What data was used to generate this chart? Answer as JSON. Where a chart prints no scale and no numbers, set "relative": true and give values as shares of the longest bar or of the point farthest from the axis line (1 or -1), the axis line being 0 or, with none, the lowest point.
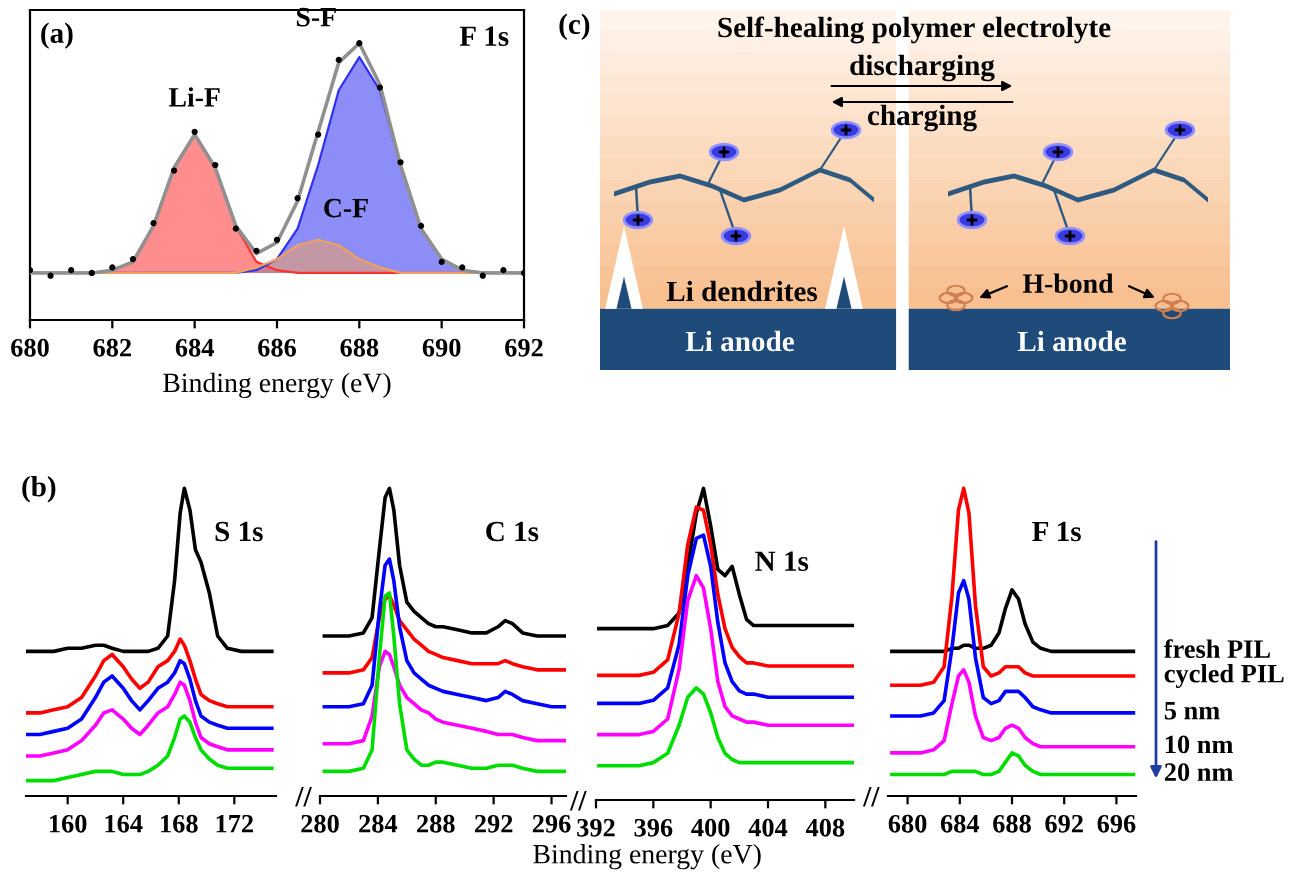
{
  "chart_data": [
    {
      "type": "line",
      "title": "F 1s",
      "xlabel": "Binding energy (eV)",
      "relative": true,
      "xlim": [
        680,
        692
      ],
      "xticks": [
        680,
        682,
        684,
        686,
        688,
        690,
        692
      ],
      "annotations": [
        "(a)",
        {
          "text": "Li-F",
          "x": 684.0,
          "y": 0.67
        },
        {
          "text": "S-F",
          "x": 688.0,
          "y": 1.0
        },
        {
          "text": "C-F",
          "x": 687.0,
          "y": 0.29
        }
      ],
      "x": [
        680,
        680.5,
        681,
        681.5,
        682,
        682.5,
        683,
        683.5,
        684,
        684.5,
        685,
        685.5,
        686,
        686.5,
        687,
        687.5,
        688,
        688.5,
        689,
        689.5,
        690,
        690.5,
        691,
        691.5,
        692
      ],
      "series": [
        {
          "type": "area",
          "color": "#ff3030",
          "values": [
            0.17,
            0.17,
            0.17,
            0.17,
            0.18,
            0.21,
            0.34,
            0.55,
            0.67,
            0.55,
            0.34,
            0.21,
            0.18,
            0.17,
            0.17,
            0.17,
            0.17,
            0.17,
            0.17,
            0.17,
            0.17,
            0.17,
            0.17,
            0.17,
            0.17
          ]
        },
        {
          "type": "area",
          "color": "#3030f0",
          "values": [
            0.17,
            0.17,
            0.17,
            0.17,
            0.17,
            0.17,
            0.17,
            0.17,
            0.17,
            0.17,
            0.17,
            0.18,
            0.22,
            0.33,
            0.56,
            0.83,
            0.95,
            0.83,
            0.56,
            0.33,
            0.22,
            0.18,
            0.17,
            0.17,
            0.17
          ]
        },
        {
          "type": "area",
          "color": "#f0a060",
          "values": [
            0.17,
            0.17,
            0.17,
            0.17,
            0.17,
            0.17,
            0.17,
            0.17,
            0.17,
            0.17,
            0.17,
            0.19,
            0.22,
            0.27,
            0.29,
            0.27,
            0.22,
            0.19,
            0.17,
            0.17,
            0.17,
            0.17,
            0.17,
            0.17,
            0.17
          ]
        },
        {
          "type": "line",
          "color": "#909090",
          "values": [
            0.17,
            0.17,
            0.17,
            0.17,
            0.18,
            0.21,
            0.34,
            0.55,
            0.67,
            0.55,
            0.34,
            0.24,
            0.28,
            0.43,
            0.68,
            0.93,
            1.0,
            0.85,
            0.56,
            0.33,
            0.22,
            0.18,
            0.17,
            0.17,
            0.17
          ]
        },
        {
          "type": "scatter",
          "marker": "circle",
          "color": "#000000",
          "values": [
            0.18,
            0.16,
            0.18,
            0.17,
            0.19,
            0.22,
            0.35,
            0.54,
            0.68,
            0.56,
            0.33,
            0.25,
            0.29,
            0.44,
            0.67,
            0.94,
            1.0,
            0.84,
            0.57,
            0.34,
            0.21,
            0.19,
            0.16,
            0.18,
            0.17
          ]
        }
      ]
    },
    {
      "type": "other",
      "title": "(c)",
      "annotations": [
        "Self-healing polymer electrolyte",
        "discharging",
        "charging",
        "Li dendrites",
        "H-bond",
        "Li anode",
        "Li anode"
      ]
    },
    {
      "type": "line",
      "title": "S 1s",
      "relative": true,
      "xlim": [
        157,
        175
      ],
      "xticks": [
        160,
        164,
        168,
        172
      ],
      "annotations": [
        "(b)"
      ],
      "x": [
        157,
        158,
        159,
        160,
        161,
        162,
        162.6,
        163.2,
        164,
        164.6,
        165.2,
        165.8,
        166.5,
        167.2,
        167.7,
        168.1,
        168.4,
        168.8,
        169.2,
        169.6,
        170.2,
        170.8,
        171.5,
        172.5,
        173.5,
        174.7
      ],
      "series": [
        {
          "color": "#000000",
          "values": [
            0.47,
            0.47,
            0.47,
            0.48,
            0.48,
            0.49,
            0.49,
            0.48,
            0.47,
            0.47,
            0.47,
            0.47,
            0.48,
            0.52,
            0.7,
            0.92,
            1.0,
            0.93,
            0.8,
            0.76,
            0.66,
            0.52,
            0.48,
            0.47,
            0.47,
            0.47
          ]
        },
        {
          "color": "#ff0000",
          "values": [
            0.27,
            0.27,
            0.28,
            0.29,
            0.32,
            0.39,
            0.44,
            0.46,
            0.42,
            0.38,
            0.35,
            0.37,
            0.42,
            0.44,
            0.47,
            0.51,
            0.49,
            0.44,
            0.38,
            0.33,
            0.31,
            0.3,
            0.29,
            0.29,
            0.29,
            0.29
          ]
        },
        {
          "color": "#0000ff",
          "values": [
            0.2,
            0.2,
            0.21,
            0.22,
            0.25,
            0.32,
            0.37,
            0.39,
            0.35,
            0.31,
            0.28,
            0.31,
            0.35,
            0.37,
            0.4,
            0.44,
            0.43,
            0.38,
            0.31,
            0.26,
            0.24,
            0.23,
            0.22,
            0.22,
            0.22,
            0.22
          ]
        },
        {
          "color": "#ff00ff",
          "values": [
            0.13,
            0.13,
            0.14,
            0.15,
            0.18,
            0.23,
            0.27,
            0.28,
            0.25,
            0.22,
            0.2,
            0.23,
            0.27,
            0.29,
            0.33,
            0.37,
            0.36,
            0.31,
            0.24,
            0.19,
            0.17,
            0.16,
            0.15,
            0.15,
            0.15,
            0.15
          ]
        },
        {
          "color": "#00dd00",
          "values": [
            0.05,
            0.05,
            0.05,
            0.06,
            0.07,
            0.08,
            0.08,
            0.08,
            0.07,
            0.07,
            0.07,
            0.08,
            0.1,
            0.13,
            0.19,
            0.25,
            0.26,
            0.24,
            0.19,
            0.15,
            0.12,
            0.1,
            0.09,
            0.09,
            0.09,
            0.09
          ]
        }
      ]
    },
    {
      "type": "line",
      "title": "C 1s",
      "xlabel": "Binding energy (eV)",
      "relative": true,
      "xlim": [
        280,
        297
      ],
      "xticks": [
        280,
        284,
        288,
        292,
        296
      ],
      "annotations": [
        "//"
      ],
      "x": [
        280.3,
        281,
        282,
        283,
        283.6,
        284.1,
        284.5,
        284.8,
        285.1,
        285.5,
        286,
        286.5,
        287,
        287.5,
        288,
        288.5,
        289.5,
        290.5,
        291.5,
        292.3,
        292.8,
        293.3,
        294,
        295,
        296,
        296.9
      ],
      "series": [
        {
          "color": "#000000",
          "values": [
            0.52,
            0.52,
            0.52,
            0.53,
            0.58,
            0.8,
            0.97,
            1.0,
            0.93,
            0.75,
            0.63,
            0.6,
            0.58,
            0.56,
            0.55,
            0.55,
            0.54,
            0.53,
            0.53,
            0.55,
            0.57,
            0.56,
            0.53,
            0.52,
            0.52,
            0.52
          ]
        },
        {
          "color": "#ff0000",
          "values": [
            0.4,
            0.4,
            0.4,
            0.41,
            0.45,
            0.58,
            0.64,
            0.65,
            0.62,
            0.57,
            0.54,
            0.51,
            0.49,
            0.47,
            0.46,
            0.45,
            0.44,
            0.43,
            0.43,
            0.43,
            0.44,
            0.43,
            0.42,
            0.41,
            0.41,
            0.41
          ]
        },
        {
          "color": "#0000ff",
          "values": [
            0.29,
            0.29,
            0.29,
            0.3,
            0.36,
            0.6,
            0.75,
            0.77,
            0.7,
            0.55,
            0.44,
            0.4,
            0.38,
            0.36,
            0.35,
            0.34,
            0.33,
            0.32,
            0.31,
            0.32,
            0.34,
            0.33,
            0.31,
            0.3,
            0.29,
            0.29
          ]
        },
        {
          "color": "#ff00ff",
          "values": [
            0.17,
            0.17,
            0.17,
            0.18,
            0.26,
            0.42,
            0.47,
            0.46,
            0.42,
            0.36,
            0.32,
            0.3,
            0.28,
            0.27,
            0.25,
            0.24,
            0.23,
            0.22,
            0.21,
            0.2,
            0.2,
            0.2,
            0.19,
            0.18,
            0.18,
            0.18
          ]
        },
        {
          "color": "#00dd00",
          "values": [
            0.08,
            0.08,
            0.08,
            0.09,
            0.15,
            0.45,
            0.65,
            0.66,
            0.52,
            0.3,
            0.15,
            0.12,
            0.1,
            0.1,
            0.11,
            0.11,
            0.1,
            0.09,
            0.09,
            0.1,
            0.1,
            0.1,
            0.09,
            0.08,
            0.08,
            0.08
          ]
        }
      ]
    },
    {
      "type": "line",
      "title": "N 1s",
      "relative": true,
      "xlim": [
        392,
        410
      ],
      "xticks": [
        392,
        396,
        400,
        404,
        408
      ],
      "annotations": [
        "//"
      ],
      "x": [
        392.2,
        393,
        394,
        395,
        396,
        397,
        397.8,
        398.4,
        399,
        399.5,
        400,
        400.5,
        401,
        401.5,
        402,
        402.5,
        403,
        404,
        405,
        406,
        407,
        408,
        409,
        409.9
      ],
      "series": [
        {
          "color": "#000000",
          "values": [
            0.55,
            0.55,
            0.55,
            0.55,
            0.55,
            0.56,
            0.6,
            0.75,
            0.92,
            1.0,
            0.88,
            0.74,
            0.72,
            0.75,
            0.66,
            0.58,
            0.56,
            0.56,
            0.56,
            0.56,
            0.56,
            0.56,
            0.56,
            0.56
          ]
        },
        {
          "color": "#ff0000",
          "values": [
            0.4,
            0.4,
            0.4,
            0.4,
            0.41,
            0.45,
            0.6,
            0.82,
            0.94,
            0.93,
            0.82,
            0.66,
            0.55,
            0.49,
            0.46,
            0.44,
            0.44,
            0.43,
            0.43,
            0.43,
            0.43,
            0.43,
            0.43,
            0.43
          ]
        },
        {
          "color": "#0000ff",
          "values": [
            0.31,
            0.31,
            0.31,
            0.31,
            0.32,
            0.36,
            0.5,
            0.72,
            0.84,
            0.85,
            0.75,
            0.57,
            0.44,
            0.38,
            0.35,
            0.34,
            0.34,
            0.33,
            0.33,
            0.33,
            0.33,
            0.33,
            0.33,
            0.33
          ]
        },
        {
          "color": "#ff00ff",
          "values": [
            0.21,
            0.21,
            0.21,
            0.21,
            0.22,
            0.26,
            0.42,
            0.64,
            0.72,
            0.68,
            0.55,
            0.38,
            0.3,
            0.27,
            0.26,
            0.25,
            0.25,
            0.24,
            0.24,
            0.24,
            0.24,
            0.24,
            0.24,
            0.24
          ]
        },
        {
          "color": "#00dd00",
          "values": [
            0.11,
            0.11,
            0.11,
            0.11,
            0.12,
            0.15,
            0.24,
            0.33,
            0.36,
            0.34,
            0.28,
            0.2,
            0.15,
            0.13,
            0.12,
            0.12,
            0.12,
            0.12,
            0.12,
            0.12,
            0.12,
            0.12,
            0.12,
            0.12
          ]
        }
      ]
    },
    {
      "type": "line",
      "title": "F 1s",
      "relative": true,
      "xlim": [
        678.5,
        697.5
      ],
      "xticks": [
        680,
        684,
        688,
        692,
        696
      ],
      "annotations": [
        "//"
      ],
      "x": [
        678.8,
        680,
        681,
        682,
        682.8,
        683.4,
        683.9,
        684.3,
        684.7,
        685.2,
        685.8,
        686.4,
        687,
        687.5,
        688,
        688.5,
        689,
        689.6,
        690.2,
        691,
        692,
        694,
        696,
        697.3
      ],
      "series": [
        {
          "name": "fresh PIL",
          "color": "#000000",
          "values": [
            0.47,
            0.47,
            0.47,
            0.47,
            0.47,
            0.48,
            0.48,
            0.49,
            0.49,
            0.48,
            0.48,
            0.49,
            0.53,
            0.61,
            0.67,
            0.64,
            0.56,
            0.5,
            0.48,
            0.47,
            0.47,
            0.47,
            0.47,
            0.47
          ]
        },
        {
          "name": "cycled PIL",
          "color": "#ff0000",
          "values": [
            0.36,
            0.36,
            0.36,
            0.37,
            0.42,
            0.65,
            0.93,
            1.0,
            0.92,
            0.62,
            0.42,
            0.39,
            0.4,
            0.42,
            0.42,
            0.42,
            0.4,
            0.39,
            0.39,
            0.39,
            0.39,
            0.39,
            0.39,
            0.39
          ]
        },
        {
          "name": "5 nm",
          "color": "#0000ff",
          "values": [
            0.26,
            0.26,
            0.26,
            0.27,
            0.31,
            0.48,
            0.66,
            0.7,
            0.64,
            0.45,
            0.32,
            0.3,
            0.31,
            0.34,
            0.34,
            0.34,
            0.32,
            0.29,
            0.28,
            0.27,
            0.27,
            0.27,
            0.27,
            0.27
          ]
        },
        {
          "name": "10 nm",
          "color": "#ff00ff",
          "values": [
            0.14,
            0.14,
            0.14,
            0.15,
            0.18,
            0.3,
            0.39,
            0.41,
            0.37,
            0.26,
            0.19,
            0.18,
            0.19,
            0.22,
            0.23,
            0.22,
            0.19,
            0.17,
            0.16,
            0.16,
            0.16,
            0.16,
            0.16,
            0.16
          ]
        },
        {
          "name": "20 nm",
          "color": "#00dd00",
          "values": [
            0.07,
            0.07,
            0.07,
            0.07,
            0.07,
            0.08,
            0.08,
            0.08,
            0.08,
            0.08,
            0.07,
            0.07,
            0.08,
            0.11,
            0.14,
            0.13,
            0.1,
            0.08,
            0.07,
            0.07,
            0.07,
            0.07,
            0.07,
            0.07
          ]
        }
      ]
    }
  ]
}
